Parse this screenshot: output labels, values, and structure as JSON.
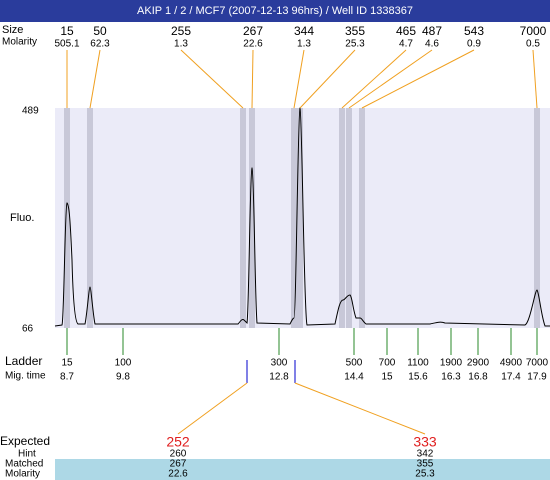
{
  "title": "AKIP 1 / 2 / MCF7 (2007-12-13 96hrs) / Well ID 1338367",
  "peak_labels": {
    "size": "Size",
    "molarity": "Molarity"
  },
  "peaks": [
    {
      "size": "15",
      "molarity": "505.1"
    },
    {
      "size": "50",
      "molarity": "62.3"
    },
    {
      "size": "255",
      "molarity": "1.3"
    },
    {
      "size": "267",
      "molarity": "22.6"
    },
    {
      "size": "344",
      "molarity": "1.3"
    },
    {
      "size": "355",
      "molarity": "25.3"
    },
    {
      "size": "465",
      "molarity": "4.7"
    },
    {
      "size": "487",
      "molarity": "4.6"
    },
    {
      "size": "543",
      "molarity": "0.9"
    },
    {
      "size": "7000",
      "molarity": "0.5"
    }
  ],
  "y_axis": {
    "label": "Fluo.",
    "max": "489",
    "min": "66"
  },
  "ladder": {
    "label": "Ladder",
    "time_label": "Mig. time",
    "points": [
      {
        "size": "15",
        "time": "8.7"
      },
      {
        "size": "100",
        "time": "9.8"
      },
      {
        "size": "300",
        "time": "12.8"
      },
      {
        "size": "500",
        "time": "14.4"
      },
      {
        "size": "700",
        "time": "15"
      },
      {
        "size": "1100",
        "time": "15.6"
      },
      {
        "size": "1900",
        "time": "16.3"
      },
      {
        "size": "2900",
        "time": "16.8"
      },
      {
        "size": "4900",
        "time": "17.4"
      },
      {
        "size": "7000",
        "time": "17.9"
      }
    ]
  },
  "expected": {
    "labels": {
      "expected": "Expected",
      "hint": "Hint",
      "matched": "Matched",
      "molarity": "Molarity"
    },
    "columns": [
      {
        "expected": "252",
        "hint": "260",
        "matched": "267",
        "molarity": "22.6"
      },
      {
        "expected": "333",
        "hint": "342",
        "matched": "355",
        "molarity": "25.3"
      }
    ]
  }
}
